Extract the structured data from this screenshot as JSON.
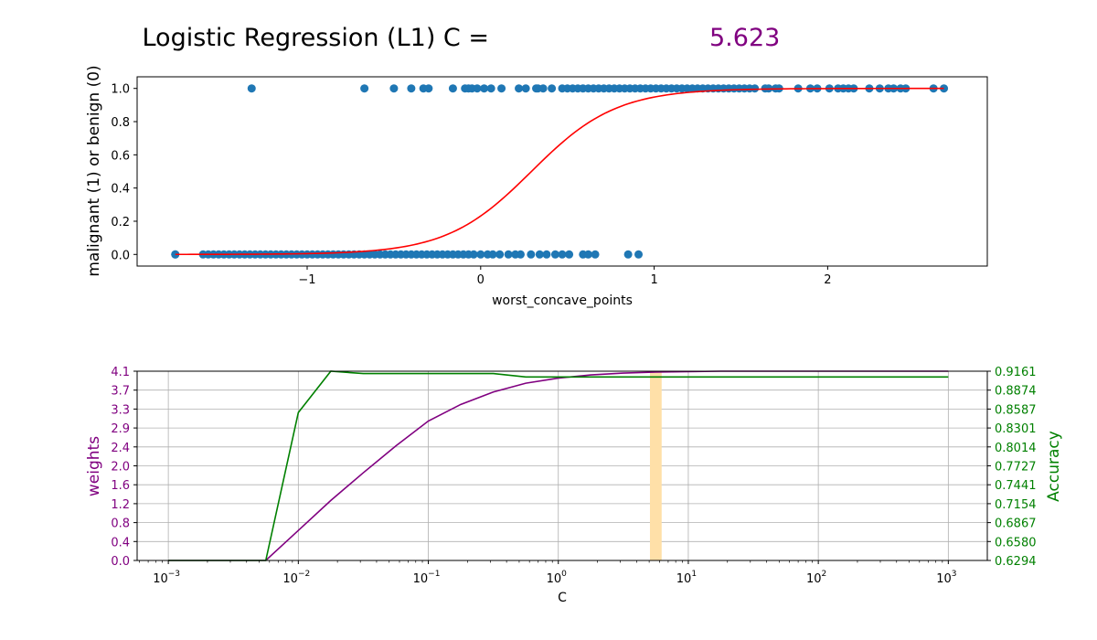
{
  "title": {
    "prefix": "Logistic Regression (L1) C =",
    "value": "5.623",
    "value_color": "#800080"
  },
  "chart_data": [
    {
      "type": "scatter",
      "xlabel": "worst_concave_points",
      "ylabel": "malignant (1) or benign (0)",
      "xlim": [
        -1.98,
        2.92
      ],
      "ylim": [
        -0.07,
        1.07
      ],
      "xticks": [
        -1,
        0,
        1,
        2
      ],
      "xtick_labels": [
        "−1",
        "0",
        "1",
        "2"
      ],
      "yticks": [
        0.0,
        0.2,
        0.4,
        0.6,
        0.8,
        1.0
      ],
      "ytick_labels": [
        "0.0",
        "0.2",
        "0.4",
        "0.6",
        "0.8",
        "1.0"
      ],
      "grid": false,
      "point_color": "#1f77b4",
      "curve_color": "#ff0000",
      "points_class1_x": [
        -1.32,
        -0.67,
        -0.5,
        -0.4,
        -0.33,
        -0.3,
        -0.16,
        -0.09,
        -0.07,
        -0.05,
        -0.02,
        0.02,
        0.06,
        0.12,
        0.22,
        0.26,
        0.32,
        0.33,
        0.36,
        0.41,
        0.47,
        0.5,
        0.53,
        0.56,
        0.59,
        0.62,
        0.65,
        0.68,
        0.71,
        0.74,
        0.77,
        0.8,
        0.83,
        0.86,
        0.89,
        0.92,
        0.95,
        0.98,
        1.01,
        1.04,
        1.07,
        1.1,
        1.13,
        1.16,
        1.19,
        1.22,
        1.25,
        1.28,
        1.31,
        1.34,
        1.37,
        1.4,
        1.43,
        1.46,
        1.49,
        1.52,
        1.55,
        1.58,
        1.64,
        1.66,
        1.7,
        1.72,
        1.83,
        1.9,
        1.94,
        2.01,
        2.06,
        2.09,
        2.12,
        2.15,
        2.24,
        2.3,
        2.35,
        2.38,
        2.42,
        2.45,
        2.61,
        2.67
      ],
      "points_class0_x": [
        -1.76,
        -1.76,
        -1.6,
        -1.57,
        -1.54,
        -1.51,
        -1.48,
        -1.45,
        -1.42,
        -1.39,
        -1.36,
        -1.33,
        -1.3,
        -1.27,
        -1.24,
        -1.21,
        -1.18,
        -1.15,
        -1.12,
        -1.09,
        -1.06,
        -1.03,
        -1.0,
        -0.97,
        -0.94,
        -0.91,
        -0.88,
        -0.85,
        -0.82,
        -0.79,
        -0.76,
        -0.73,
        -0.7,
        -0.67,
        -0.64,
        -0.61,
        -0.58,
        -0.55,
        -0.52,
        -0.49,
        -0.46,
        -0.43,
        -0.4,
        -0.37,
        -0.34,
        -0.31,
        -0.28,
        -0.25,
        -0.22,
        -0.19,
        -0.16,
        -0.13,
        -0.1,
        -0.07,
        -0.04,
        0.0,
        0.04,
        0.07,
        0.11,
        0.16,
        0.2,
        0.23,
        0.29,
        0.34,
        0.38,
        0.43,
        0.47,
        0.51,
        0.59,
        0.62,
        0.66,
        0.85,
        0.91
      ],
      "curve": {
        "intercept": -1.2,
        "slope": 4.1
      }
    },
    {
      "type": "line",
      "xlabel": "C",
      "ylabel_left": "weights",
      "ylabel_right": "Accuracy",
      "xscale": "log",
      "xlim_log10": [
        -3.24,
        3.3
      ],
      "xticks_log10": [
        -3,
        -2,
        -1,
        0,
        1,
        2,
        3
      ],
      "xtick_bases": [
        "10",
        "10",
        "10",
        "10",
        "10",
        "10",
        "10"
      ],
      "xtick_exps": [
        "−3",
        "−2",
        "−1",
        "0",
        "1",
        "2",
        "3"
      ],
      "ylim_left": [
        0.0,
        4.1
      ],
      "yticks_left": [
        "0.0",
        "0.4",
        "0.8",
        "1.2",
        "1.6",
        "2.0",
        "2.4",
        "2.9",
        "3.3",
        "3.7",
        "4.1"
      ],
      "ylim_right": [
        0.6294,
        0.9161
      ],
      "yticks_right": [
        "0.6294",
        "0.6580",
        "0.6867",
        "0.7154",
        "0.7441",
        "0.7727",
        "0.8014",
        "0.8301",
        "0.8587",
        "0.8874",
        "0.9161"
      ],
      "grid": true,
      "left_axis_color": "#800080",
      "right_axis_color": "#008000",
      "highlight_color": "#ffe0a8",
      "highlight_C": 5.623,
      "C_values": [
        0.001,
        0.00178,
        0.00316,
        0.00562,
        0.01,
        0.01778,
        0.03162,
        0.05623,
        0.1,
        0.17783,
        0.31623,
        0.56234,
        1,
        1.7783,
        3.1623,
        5.6234,
        10,
        17.783,
        31.623,
        56.234,
        100,
        177.83,
        316.23,
        562.34,
        1000
      ],
      "series": [
        {
          "name": "weights",
          "axis": "left",
          "color": "#800080",
          "values": [
            0,
            0,
            0,
            0,
            0.65,
            1.3,
            1.9,
            2.48,
            3.02,
            3.38,
            3.65,
            3.84,
            3.95,
            4.02,
            4.06,
            4.08,
            4.09,
            4.1,
            4.1,
            4.1,
            4.1,
            4.1,
            4.1,
            4.1,
            4.1
          ]
        },
        {
          "name": "Accuracy",
          "axis": "right",
          "color": "#008000",
          "values": [
            0.6294,
            0.6294,
            0.6294,
            0.6294,
            0.8535,
            0.9161,
            0.9125,
            0.9125,
            0.9125,
            0.9125,
            0.9125,
            0.9073,
            0.9073,
            0.9073,
            0.9073,
            0.9073,
            0.9073,
            0.9073,
            0.9073,
            0.9073,
            0.9073,
            0.9073,
            0.9073,
            0.9073,
            0.9073
          ]
        }
      ]
    }
  ]
}
